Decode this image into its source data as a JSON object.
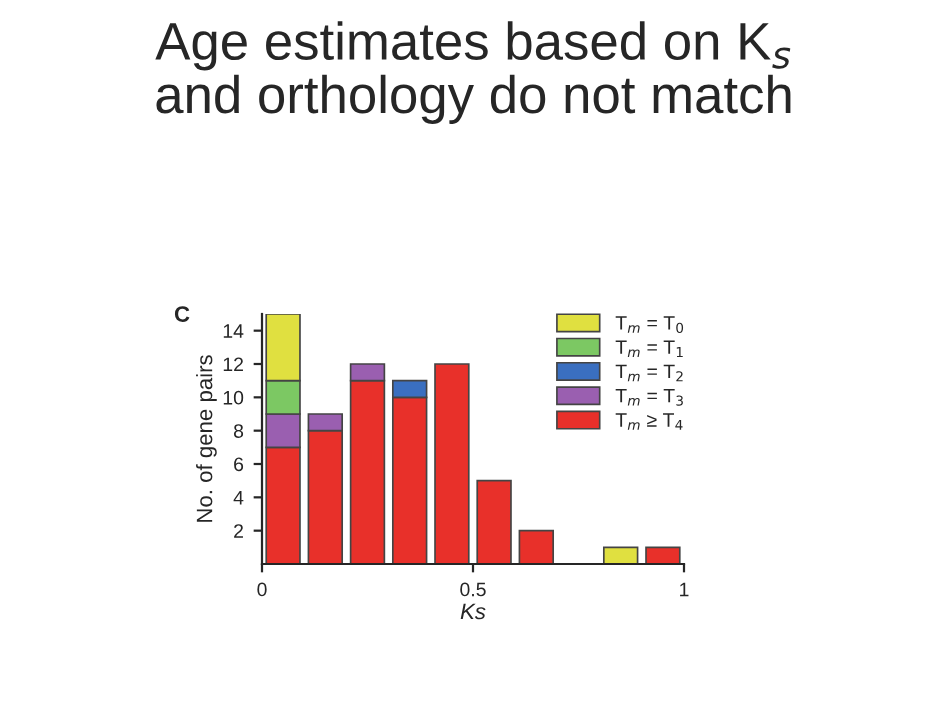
{
  "chart_data": {
    "type": "bar",
    "stacked": true,
    "title": "Age estimates based on K$_{s}$\nand orthology do not match",
    "xlabel": "Ks",
    "ylabel": "No. of gene pairs",
    "annotations": [
      "C"
    ],
    "x": [
      0.05,
      0.15,
      0.25,
      0.35,
      0.45,
      0.55,
      0.65,
      0.75,
      0.85,
      0.95
    ],
    "series": [
      {
        "name": "T$_{m}$ ≥ T$_{4}$",
        "color": "#e8302a",
        "values": [
          7,
          8,
          11,
          10,
          12,
          5,
          2,
          null,
          null,
          1
        ]
      },
      {
        "name": "T$_{m}$ = T$_{3}$",
        "color": "#9a5fb0",
        "values": [
          2,
          1,
          1,
          null,
          null,
          null,
          null,
          null,
          null,
          null
        ]
      },
      {
        "name": "T$_{m}$ = T$_{2}$",
        "color": "#3a6fc0",
        "values": [
          null,
          null,
          null,
          1,
          null,
          null,
          null,
          null,
          null,
          null
        ]
      },
      {
        "name": "T$_{m}$ = T$_{1}$",
        "color": "#7cc863",
        "values": [
          2,
          null,
          null,
          null,
          null,
          null,
          null,
          null,
          null,
          null
        ]
      },
      {
        "name": "T$_{m}$ = T$_{0}$",
        "color": "#e0e040",
        "values": [
          4,
          null,
          null,
          null,
          null,
          null,
          null,
          null,
          1,
          null
        ]
      }
    ],
    "xlim": [
      0,
      1
    ],
    "xticks": [
      0,
      0.5,
      1
    ],
    "ylim": [
      0,
      15
    ],
    "yticks": [
      2,
      4,
      6,
      8,
      10,
      12,
      14
    ],
    "grid": false,
    "legend": "top right"
  }
}
